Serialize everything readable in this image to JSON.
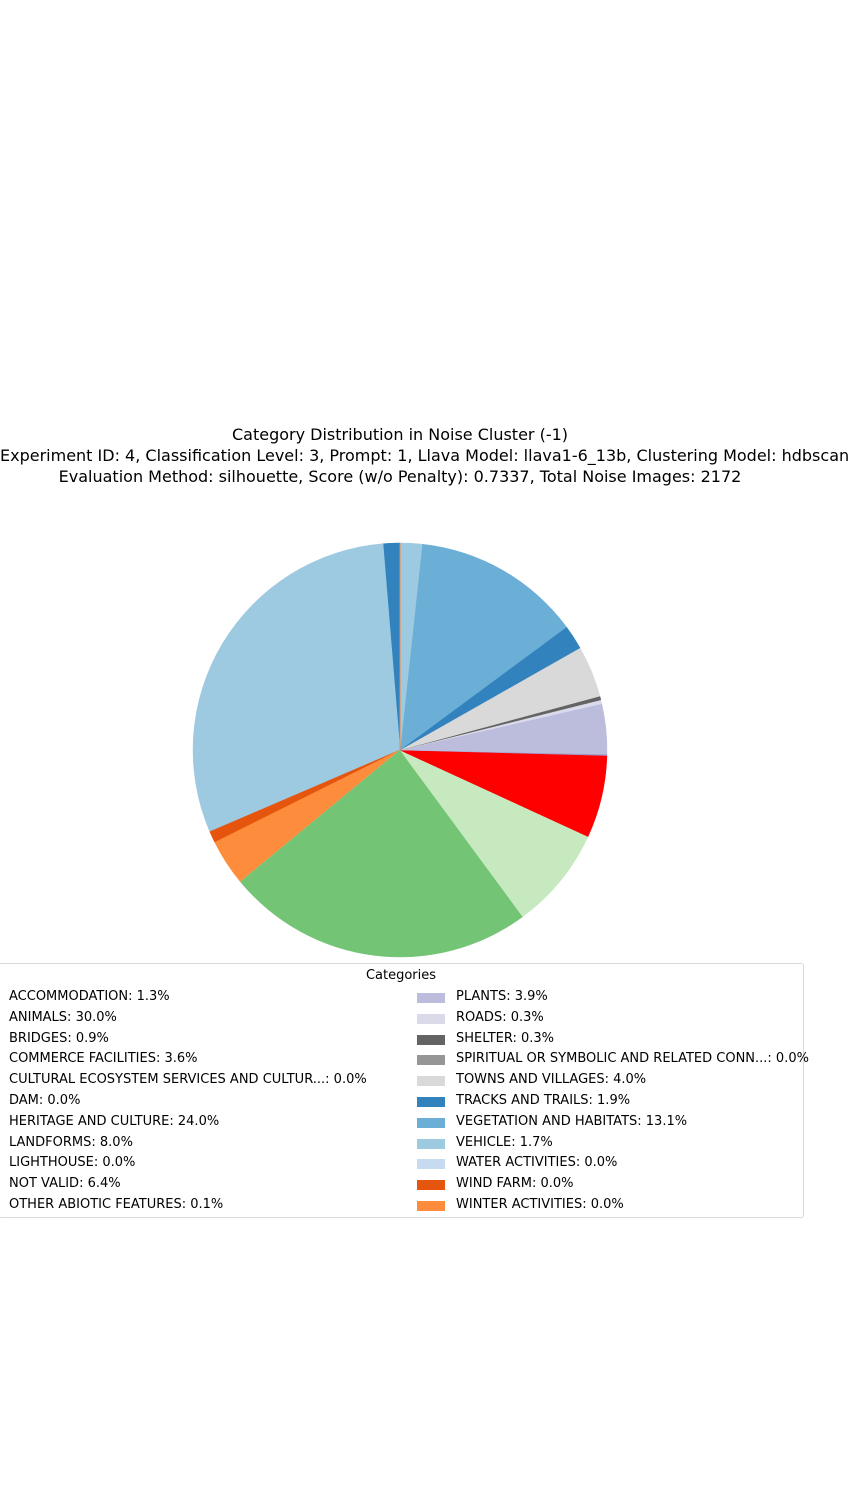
{
  "chart_data": {
    "type": "pie",
    "title": "Category Distribution in Noise Cluster (-1)",
    "subtitle_lines": [
      "Experiment ID: 4, Classification Level: 3, Prompt: 1, Llava Model: llava1-6_13b, Clustering Model: hdbscan",
      "Evaluation Method: silhouette, Score (w/o Penalty): 0.7337, Total Noise Images: 2172"
    ],
    "legend_title": "Categories",
    "start_angle_deg": 90,
    "direction": "counterclockwise",
    "slices": [
      {
        "label": "ACCOMMODATION",
        "value": 1.3,
        "color": "#3182bd"
      },
      {
        "label": "ANIMALS",
        "value": 30.0,
        "color": "#9ecae1"
      },
      {
        "label": "BRIDGES",
        "value": 0.9,
        "color": "#e6550d"
      },
      {
        "label": "COMMERCE FACILITIES",
        "value": 3.6,
        "color": "#fd8d3c"
      },
      {
        "label": "CULTURAL ECOSYSTEM SERVICES AND CULTUR...",
        "value": 0.0,
        "color": "#fdae6b"
      },
      {
        "label": "DAM",
        "value": 0.0,
        "color": "#fdd0a2"
      },
      {
        "label": "HERITAGE AND CULTURE",
        "value": 24.0,
        "color": "#74c476"
      },
      {
        "label": "LANDFORMS",
        "value": 8.0,
        "color": "#c7e9c0"
      },
      {
        "label": "LIGHTHOUSE",
        "value": 0.0,
        "color": "#ff0000"
      },
      {
        "label": "NOT VALID",
        "value": 6.4,
        "color": "#ff0000"
      },
      {
        "label": "OTHER ABIOTIC FEATURES",
        "value": 0.1,
        "color": "#9e9ac8"
      },
      {
        "label": "PLANTS",
        "value": 3.9,
        "color": "#bcbddc"
      },
      {
        "label": "ROADS",
        "value": 0.3,
        "color": "#dadaeb"
      },
      {
        "label": "SHELTER",
        "value": 0.3,
        "color": "#636363"
      },
      {
        "label": "SPIRITUAL OR SYMBOLIC AND RELATED CONN...",
        "value": 0.0,
        "color": "#969696"
      },
      {
        "label": "TOWNS AND VILLAGES",
        "value": 4.0,
        "color": "#d9d9d9"
      },
      {
        "label": "TRACKS AND TRAILS",
        "value": 1.9,
        "color": "#3182bd"
      },
      {
        "label": "VEGETATION AND HABITATS",
        "value": 13.1,
        "color": "#6baed6"
      },
      {
        "label": "VEHICLE",
        "value": 1.7,
        "color": "#9ecae1"
      },
      {
        "label": "WATER ACTIVITIES",
        "value": 0.0,
        "color": "#c6dbef"
      },
      {
        "label": "WIND FARM",
        "value": 0.0,
        "color": "#e6550d"
      },
      {
        "label": "WINTER ACTIVITIES",
        "value": 0.0,
        "color": "#fd8d3c"
      }
    ],
    "legend_labels": [
      "ACCOMMODATION: 1.3%",
      "ANIMALS: 30.0%",
      "BRIDGES: 0.9%",
      "COMMERCE FACILITIES: 3.6%",
      "CULTURAL ECOSYSTEM SERVICES AND CULTUR...: 0.0%",
      "DAM: 0.0%",
      "HERITAGE AND CULTURE: 24.0%",
      "LANDFORMS: 8.0%",
      "LIGHTHOUSE: 0.0%",
      "NOT VALID: 6.4%",
      "OTHER ABIOTIC FEATURES: 0.1%",
      "PLANTS: 3.9%",
      "ROADS: 0.3%",
      "SHELTER: 0.3%",
      "SPIRITUAL OR SYMBOLIC AND RELATED CONN...: 0.0%",
      "TOWNS AND VILLAGES: 4.0%",
      "TRACKS AND TRAILS: 1.9%",
      "VEGETATION AND HABITATS: 13.1%",
      "VEHICLE: 1.7%",
      "WATER ACTIVITIES: 0.0%",
      "WIND FARM: 0.0%",
      "WINTER ACTIVITIES: 0.0%"
    ],
    "legend_placement": "below chart, two columns"
  }
}
